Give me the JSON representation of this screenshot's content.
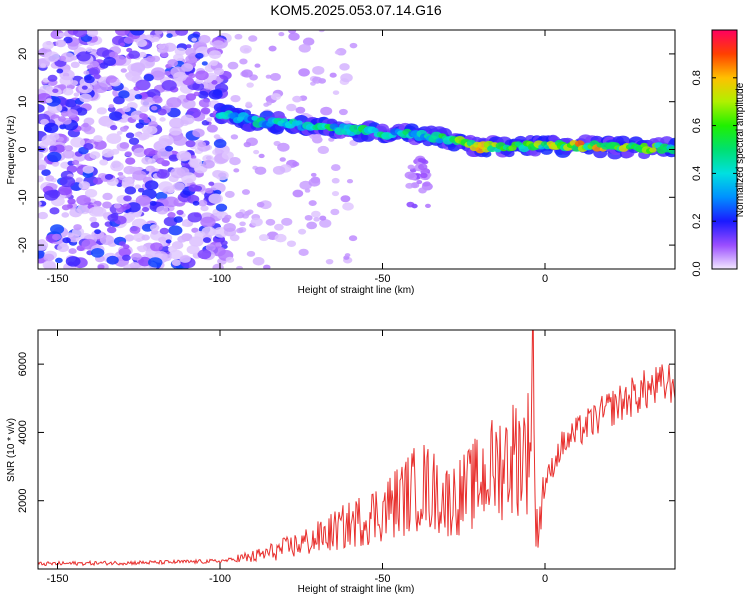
{
  "title": "KOM5.2025.053.07.14.G16",
  "chart_data": [
    {
      "type": "heatmap",
      "xlabel": "Height of straight line (km)",
      "ylabel": "Frequency (Hz)",
      "xlim": [
        -156,
        40
      ],
      "ylim": [
        -25,
        25
      ],
      "xticks": [
        -150,
        -100,
        -50,
        0
      ],
      "yticks": [
        20,
        10,
        0,
        -10,
        -20
      ],
      "colorbar": {
        "label": "Normalized spectral amplitude",
        "range": [
          0,
          1
        ],
        "ticks": [
          0.0,
          0.2,
          0.4,
          0.6,
          0.8
        ]
      },
      "ridge": [
        {
          "x": -100,
          "y": 7.5,
          "a": 0.45
        },
        {
          "x": -90,
          "y": 6.0,
          "a": 0.45
        },
        {
          "x": -80,
          "y": 5.5,
          "a": 0.5
        },
        {
          "x": -70,
          "y": 4.8,
          "a": 0.5
        },
        {
          "x": -60,
          "y": 4.2,
          "a": 0.55
        },
        {
          "x": -50,
          "y": 3.5,
          "a": 0.5
        },
        {
          "x": -40,
          "y": 3.0,
          "a": 0.5
        },
        {
          "x": -30,
          "y": 2.2,
          "a": 0.55
        },
        {
          "x": -20,
          "y": 0.5,
          "a": 0.8
        },
        {
          "x": -10,
          "y": 0.5,
          "a": 0.75
        },
        {
          "x": 0,
          "y": 1.0,
          "a": 0.7
        },
        {
          "x": 10,
          "y": 0.8,
          "a": 0.8
        },
        {
          "x": 20,
          "y": 0.5,
          "a": 0.75
        },
        {
          "x": 30,
          "y": 0.3,
          "a": 0.7
        },
        {
          "x": 40,
          "y": 0.3,
          "a": 0.65
        }
      ]
    },
    {
      "type": "line",
      "xlabel": "Height of straight line (km)",
      "ylabel": "SNR (10 * v/v)",
      "xlim": [
        -156,
        40
      ],
      "ylim": [
        0,
        7000
      ],
      "xticks": [
        -150,
        -100,
        -50,
        0
      ],
      "yticks": [
        2000,
        4000,
        6000
      ],
      "color": "#e8302e",
      "series": [
        {
          "values": [
            {
              "x": -156,
              "y": 150
            },
            {
              "x": -140,
              "y": 170
            },
            {
              "x": -120,
              "y": 190
            },
            {
              "x": -100,
              "y": 230
            },
            {
              "x": -90,
              "y": 350
            },
            {
              "x": -80,
              "y": 600
            },
            {
              "x": -70,
              "y": 900
            },
            {
              "x": -60,
              "y": 1300
            },
            {
              "x": -50,
              "y": 1700
            },
            {
              "x": -42,
              "y": 2200
            },
            {
              "x": -38,
              "y": 2500
            },
            {
              "x": -30,
              "y": 2000
            },
            {
              "x": -25,
              "y": 2200
            },
            {
              "x": -20,
              "y": 2600
            },
            {
              "x": -15,
              "y": 3000
            },
            {
              "x": -10,
              "y": 3300
            },
            {
              "x": -5,
              "y": 3500
            },
            {
              "x": -3.5,
              "y": 7000
            },
            {
              "x": -3,
              "y": 900
            },
            {
              "x": 0,
              "y": 2500
            },
            {
              "x": 5,
              "y": 3600
            },
            {
              "x": 10,
              "y": 4000
            },
            {
              "x": 20,
              "y": 4700
            },
            {
              "x": 30,
              "y": 5200
            },
            {
              "x": 40,
              "y": 5500
            }
          ]
        }
      ]
    }
  ]
}
